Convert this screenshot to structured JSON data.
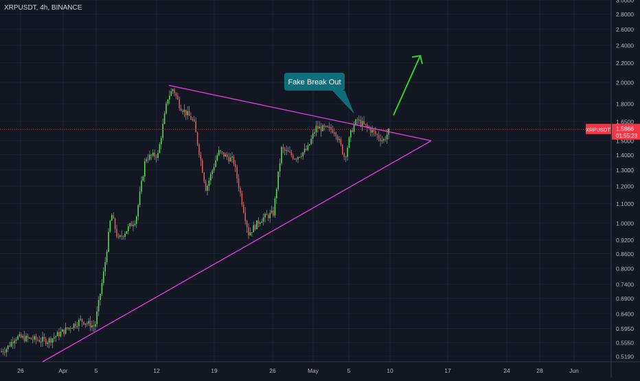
{
  "header": {
    "symbol_line": "XRPUSDT, 4h, BINANCE"
  },
  "chart_data": {
    "type": "candlestick",
    "symbol": "XRPUSDT",
    "interval": "4h",
    "exchange": "BINANCE",
    "y_scale": "log",
    "ylim": [
      0.505,
      3.0
    ],
    "y_ticks": [
      "3.0000",
      "2.8000",
      "2.6000",
      "2.4000",
      "2.2000",
      "2.0000",
      "1.8000",
      "1.6500",
      "1.5000",
      "1.4000",
      "1.3000",
      "1.2000",
      "1.1000",
      "1.0000",
      "0.9200",
      "0.8600",
      "0.8000",
      "0.7400",
      "0.6900",
      "0.6400",
      "0.5950",
      "0.5550",
      "0.5190"
    ],
    "x_ticks": [
      "26",
      "Apr",
      "5",
      "12",
      "19",
      "26",
      "May",
      "5",
      "10",
      "17",
      "24",
      "28",
      "Jun"
    ],
    "ohlc_keypoints": [
      [
        "start",
        0.53
      ],
      [
        "low",
        0.54
      ],
      [
        "bounce",
        0.56
      ],
      [
        "rise",
        0.62
      ],
      [
        "rally",
        1.05
      ],
      [
        "pullback",
        0.92
      ],
      [
        "high",
        1.97
      ],
      [
        "drop",
        1.18
      ],
      [
        "bounce",
        1.4
      ],
      [
        "low",
        0.89
      ],
      [
        "recover",
        1.05
      ],
      [
        "rise",
        1.44
      ],
      [
        "high",
        1.62
      ],
      [
        "dip",
        1.35
      ],
      [
        "fake breakout",
        1.7
      ],
      [
        "last",
        1.5866
      ]
    ],
    "last_price": {
      "label": "XRPUSDT",
      "value": "1.5866",
      "countdown": "01:55:23",
      "color": "#f23645"
    },
    "annotations": [
      {
        "type": "callout",
        "text": "Fake Break Out",
        "color": "#106e7b"
      },
      {
        "type": "trendline",
        "name": "upper resistance",
        "from": [
          "Apr 12",
          1.97
        ],
        "to": [
          "May 15",
          1.5
        ],
        "color": "#e83ee8"
      },
      {
        "type": "trendline",
        "name": "lower support",
        "from": [
          "Mar 28",
          0.505
        ],
        "to": [
          "May 15",
          1.5
        ],
        "color": "#e83ee8"
      },
      {
        "type": "arrow",
        "name": "breakout projection",
        "color": "#2ed12e"
      }
    ],
    "colors": {
      "background": "#131722",
      "up": "#26a69a",
      "up_alt": "#4ce04c",
      "down": "#ef5350",
      "wick": "#b2b5be",
      "grid": "#1f2230"
    }
  }
}
